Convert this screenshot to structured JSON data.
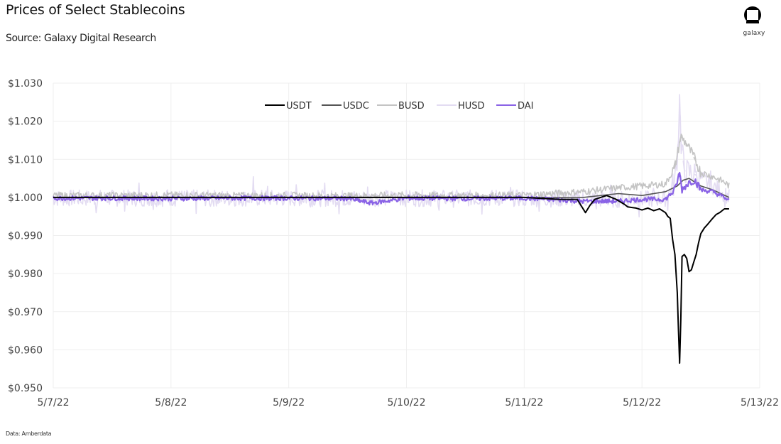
{
  "header": {
    "title": "Prices of Select Stablecoins",
    "subtitle": "Source: Galaxy Digital Research"
  },
  "logo": {
    "icon": "galaxy-logo-icon",
    "wordmark": "galaxy"
  },
  "footnote": "Data: Amberdata",
  "chart_data": {
    "type": "line",
    "title": "Prices of Select Stablecoins",
    "subtitle": "Source: Galaxy Digital Research",
    "xlabel": "",
    "ylabel": "",
    "ylim": [
      0.95,
      1.03
    ],
    "yticks": [
      "$1.030",
      "$1.020",
      "$1.010",
      "$1.000",
      "$0.990",
      "$0.980",
      "$0.970",
      "$0.960",
      "$0.950"
    ],
    "ytick_values": [
      1.03,
      1.02,
      1.01,
      1.0,
      0.99,
      0.98,
      0.97,
      0.96,
      0.95
    ],
    "xticks": [
      "5/7/22",
      "5/8/22",
      "5/9/22",
      "5/10/22",
      "5/11/22",
      "5/12/22",
      "5/13/22"
    ],
    "x_unit": "days since 5/7/22 00:00",
    "xlim": [
      0,
      6
    ],
    "grid": true,
    "legend_position": "top-center",
    "source_note": "Data: Amberdata",
    "series": [
      {
        "name": "USDT",
        "color": "#000000",
        "width": 2,
        "points": [
          [
            0,
            1.0
          ],
          [
            0.5,
            1.0
          ],
          [
            1,
            1.0
          ],
          [
            1.5,
            1.0
          ],
          [
            2,
            1.0
          ],
          [
            2.5,
            1.0
          ],
          [
            3,
            1.0
          ],
          [
            3.5,
            1.0
          ],
          [
            4,
            1.0
          ],
          [
            4.3,
            0.9995
          ],
          [
            4.45,
            0.9995
          ],
          [
            4.52,
            0.996
          ],
          [
            4.56,
            0.998
          ],
          [
            4.6,
            0.9995
          ],
          [
            4.7,
            1.0005
          ],
          [
            4.78,
            0.9995
          ],
          [
            4.85,
            0.9982
          ],
          [
            4.88,
            0.9975
          ],
          [
            4.95,
            0.9972
          ],
          [
            5.0,
            0.9967
          ],
          [
            5.05,
            0.9972
          ],
          [
            5.1,
            0.9965
          ],
          [
            5.15,
            0.997
          ],
          [
            5.2,
            0.996
          ],
          [
            5.22,
            0.995
          ],
          [
            5.24,
            0.9945
          ],
          [
            5.26,
            0.989
          ],
          [
            5.28,
            0.985
          ],
          [
            5.3,
            0.975
          ],
          [
            5.31,
            0.965
          ],
          [
            5.32,
            0.9565
          ],
          [
            5.33,
            0.968
          ],
          [
            5.34,
            0.9845
          ],
          [
            5.36,
            0.985
          ],
          [
            5.38,
            0.984
          ],
          [
            5.4,
            0.9805
          ],
          [
            5.42,
            0.981
          ],
          [
            5.44,
            0.983
          ],
          [
            5.46,
            0.985
          ],
          [
            5.48,
            0.988
          ],
          [
            5.5,
            0.9905
          ],
          [
            5.53,
            0.992
          ],
          [
            5.56,
            0.993
          ],
          [
            5.6,
            0.9945
          ],
          [
            5.63,
            0.9955
          ],
          [
            5.66,
            0.996
          ],
          [
            5.7,
            0.997
          ],
          [
            5.74,
            0.997
          ]
        ]
      },
      {
        "name": "USDC",
        "color": "#555555",
        "width": 1.6,
        "points": [
          [
            0,
            1.0
          ],
          [
            0.5,
            1.0
          ],
          [
            1,
            1.0
          ],
          [
            1.5,
            1.0
          ],
          [
            2,
            1.0
          ],
          [
            2.5,
            1.0
          ],
          [
            3,
            1.0
          ],
          [
            3.5,
            1.0
          ],
          [
            4,
            1.0
          ],
          [
            4.5,
            1.0
          ],
          [
            4.8,
            1.001
          ],
          [
            5.0,
            1.0005
          ],
          [
            5.2,
            1.0015
          ],
          [
            5.3,
            1.003
          ],
          [
            5.35,
            1.0045
          ],
          [
            5.4,
            1.005
          ],
          [
            5.5,
            1.003
          ],
          [
            5.6,
            1.002
          ],
          [
            5.74,
            1.0
          ]
        ]
      },
      {
        "name": "BUSD",
        "color": "#c4c4c4",
        "width": 1.6,
        "noise": 0.0009,
        "points": [
          [
            0,
            1.0005
          ],
          [
            0.5,
            1.0005
          ],
          [
            1,
            1.0006
          ],
          [
            1.5,
            1.0005
          ],
          [
            2,
            1.0005
          ],
          [
            2.5,
            1.0004
          ],
          [
            3,
            1.0006
          ],
          [
            3.5,
            1.0005
          ],
          [
            4,
            1.0006
          ],
          [
            4.5,
            1.0015
          ],
          [
            4.8,
            1.0025
          ],
          [
            5.0,
            1.003
          ],
          [
            5.2,
            1.0035
          ],
          [
            5.28,
            1.008
          ],
          [
            5.33,
            1.016
          ],
          [
            5.38,
            1.014
          ],
          [
            5.45,
            1.01
          ],
          [
            5.5,
            1.0065
          ],
          [
            5.6,
            1.0055
          ],
          [
            5.7,
            1.004
          ],
          [
            5.74,
            1.003
          ]
        ]
      },
      {
        "name": "HUSD",
        "color": "#e3dcf2",
        "width": 1.6,
        "noise": 0.0022,
        "points": [
          [
            0,
            0.9998
          ],
          [
            0.5,
            0.9998
          ],
          [
            1,
            0.9998
          ],
          [
            1.5,
            0.9998
          ],
          [
            2,
            0.9998
          ],
          [
            2.5,
            0.9998
          ],
          [
            3,
            0.9998
          ],
          [
            3.5,
            0.9998
          ],
          [
            4,
            0.9998
          ],
          [
            4.5,
            0.9995
          ],
          [
            4.8,
            0.9995
          ],
          [
            5.0,
            0.9995
          ],
          [
            5.2,
            0.9998
          ],
          [
            5.28,
            1.004
          ],
          [
            5.31,
            1.015
          ],
          [
            5.32,
            1.027
          ],
          [
            5.33,
            1.015
          ],
          [
            5.36,
            1.007
          ],
          [
            5.45,
            1.006
          ],
          [
            5.55,
            1.004
          ],
          [
            5.65,
            1.002
          ],
          [
            5.74,
            1.0
          ]
        ]
      },
      {
        "name": "DAI",
        "color": "#8a63e6",
        "width": 2.2,
        "noise": 0.0006,
        "points": [
          [
            0,
            0.9998
          ],
          [
            0.5,
            0.9998
          ],
          [
            1,
            0.9997
          ],
          [
            1.5,
            0.9998
          ],
          [
            2,
            0.9998
          ],
          [
            2.5,
            0.9997
          ],
          [
            2.7,
            0.9985
          ],
          [
            3,
            0.9998
          ],
          [
            3.5,
            0.9997
          ],
          [
            4,
            0.9998
          ],
          [
            4.5,
            0.999
          ],
          [
            4.8,
            0.999
          ],
          [
            5.0,
            0.9995
          ],
          [
            5.2,
            0.9995
          ],
          [
            5.28,
            1.002
          ],
          [
            5.32,
            1.0065
          ],
          [
            5.34,
            1.002
          ],
          [
            5.4,
            1.004
          ],
          [
            5.45,
            1.0045
          ],
          [
            5.5,
            1.002
          ],
          [
            5.6,
            1.0015
          ],
          [
            5.7,
            1.0
          ],
          [
            5.74,
            0.999
          ]
        ]
      }
    ]
  },
  "legend": {
    "items": [
      {
        "label": "USDT",
        "color": "#000000"
      },
      {
        "label": "USDC",
        "color": "#555555"
      },
      {
        "label": "BUSD",
        "color": "#c4c4c4"
      },
      {
        "label": "HUSD",
        "color": "#e3dcf2"
      },
      {
        "label": "DAI",
        "color": "#8a63e6"
      }
    ]
  }
}
